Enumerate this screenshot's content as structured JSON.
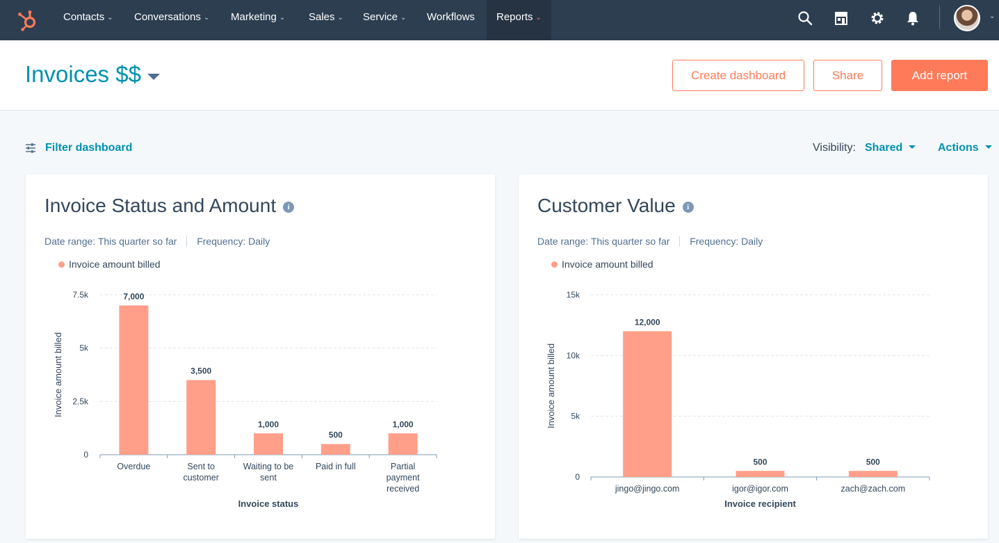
{
  "nav": {
    "items": [
      {
        "label": "Contacts",
        "has_menu": true
      },
      {
        "label": "Conversations",
        "has_menu": true
      },
      {
        "label": "Marketing",
        "has_menu": true
      },
      {
        "label": "Sales",
        "has_menu": true
      },
      {
        "label": "Service",
        "has_menu": true
      },
      {
        "label": "Workflows",
        "has_menu": false
      },
      {
        "label": "Reports",
        "has_menu": true,
        "active": true
      }
    ],
    "icons": [
      "search-icon",
      "marketplace-icon",
      "settings-icon",
      "notifications-icon"
    ],
    "brand_color": "#ff7a59",
    "bar_color": "#2d3e50"
  },
  "header": {
    "title": "Invoices $$",
    "buttons": {
      "create_dashboard": "Create dashboard",
      "share": "Share",
      "add_report": "Add report"
    }
  },
  "toolbar": {
    "filter_label": "Filter dashboard",
    "visibility_label": "Visibility:",
    "visibility_value": "Shared",
    "actions_label": "Actions"
  },
  "cards": [
    {
      "title": "Invoice Status and Amount",
      "date_range_label": "Date range:",
      "date_range_value": "This quarter so far",
      "frequency_label": "Frequency:",
      "frequency_value": "Daily",
      "legend": "Invoice amount billed"
    },
    {
      "title": "Customer Value",
      "date_range_label": "Date range:",
      "date_range_value": "This quarter so far",
      "frequency_label": "Frequency:",
      "frequency_value": "Daily",
      "legend": "Invoice amount billed"
    }
  ],
  "chart_data": [
    {
      "type": "bar",
      "categories": [
        [
          "Overdue"
        ],
        [
          "Sent to",
          "customer"
        ],
        [
          "Waiting to be",
          "sent"
        ],
        [
          "Paid in full"
        ],
        [
          "Partial",
          "payment",
          "received"
        ]
      ],
      "series": [
        {
          "name": "Invoice amount billed",
          "values": [
            7000,
            3500,
            1000,
            500,
            1000
          ]
        }
      ],
      "data_labels": [
        "7,000",
        "3,500",
        "1,000",
        "500",
        "1,000"
      ],
      "xlabel": "Invoice status",
      "ylabel": "Invoice amount billed",
      "ylim": [
        0,
        7500
      ],
      "yticks": [
        0,
        2500,
        5000,
        7500
      ],
      "ytick_labels": [
        "0",
        "2.5k",
        "5k",
        "7.5k"
      ],
      "grid": true,
      "bar_color": "#ff9f89"
    },
    {
      "type": "bar",
      "categories": [
        [
          "jingo@jingo.com"
        ],
        [
          "igor@igor.com"
        ],
        [
          "zach@zach.com"
        ]
      ],
      "series": [
        {
          "name": "Invoice amount billed",
          "values": [
            12000,
            500,
            500
          ]
        }
      ],
      "data_labels": [
        "12,000",
        "500",
        "500"
      ],
      "xlabel": "Invoice recipient",
      "ylabel": "Invoice amount billed",
      "ylim": [
        0,
        15000
      ],
      "yticks": [
        0,
        5000,
        10000,
        15000
      ],
      "ytick_labels": [
        "0",
        "5k",
        "10k",
        "15k"
      ],
      "grid": true,
      "bar_color": "#ff9f89"
    }
  ]
}
